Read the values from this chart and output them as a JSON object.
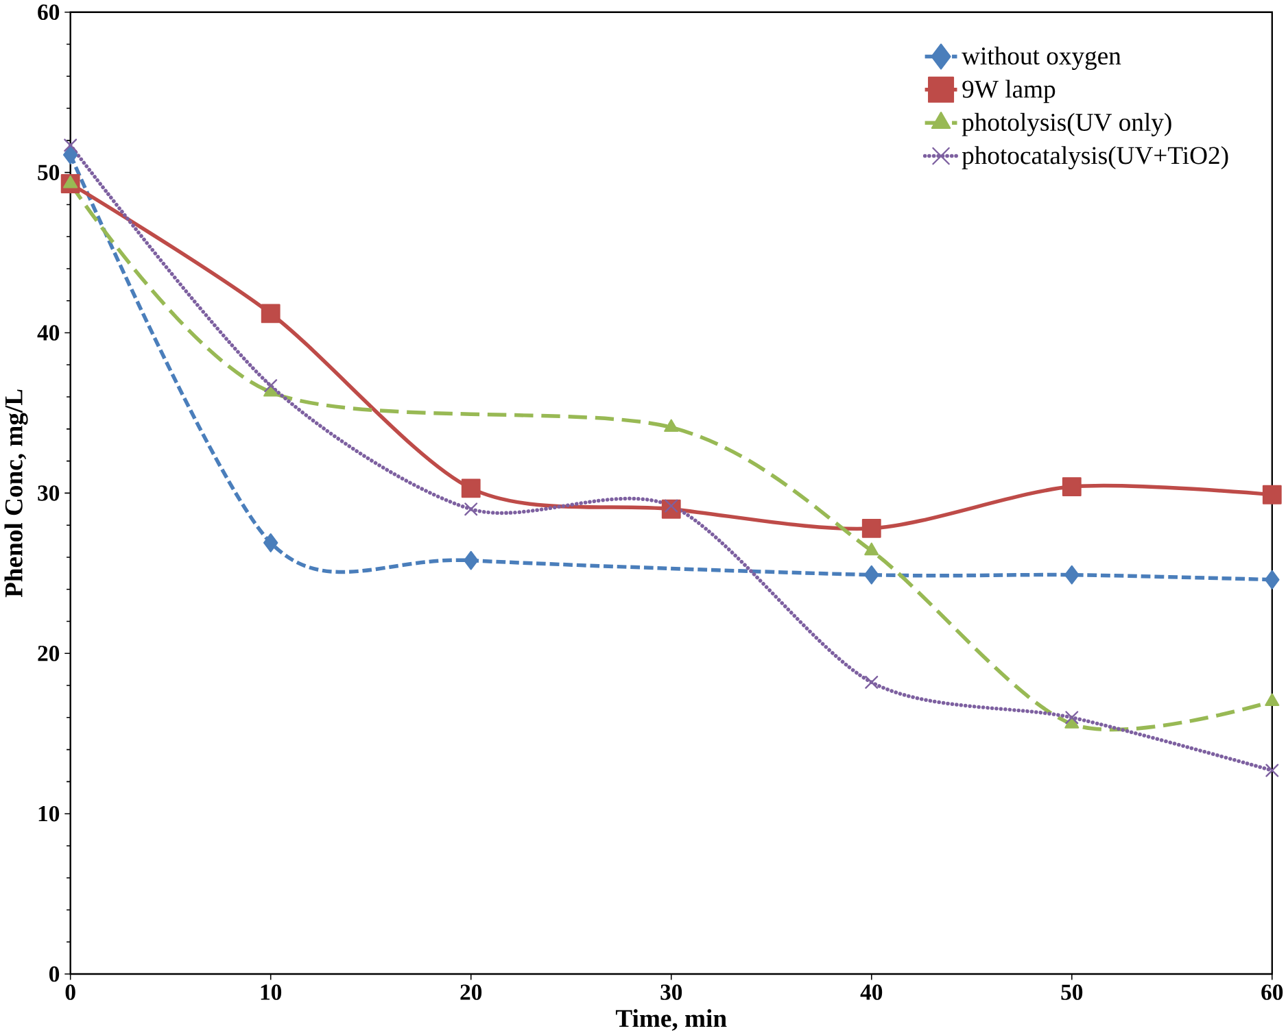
{
  "chart_data": {
    "type": "line",
    "xlabel": "Time, min",
    "ylabel": "Phenol Conc, mg/L",
    "xlim": [
      0,
      60
    ],
    "xticks": [
      0,
      10,
      20,
      30,
      40,
      50,
      60
    ],
    "ylim": [
      0,
      60
    ],
    "yticks": [
      0,
      10,
      20,
      30,
      40,
      50,
      60
    ],
    "legend": "top right",
    "grid": false,
    "series": [
      {
        "name": "without oxygen",
        "color": "#4a7ebb",
        "marker": "diamond",
        "line_style": "dashed",
        "x": [
          0,
          10,
          20,
          40,
          50,
          60
        ],
        "values": [
          51.1,
          26.9,
          25.8,
          24.9,
          24.9,
          24.6
        ]
      },
      {
        "name": "9W lamp",
        "color": "#be4b48",
        "marker": "square",
        "line_style": "solid",
        "x": [
          0,
          10,
          20,
          30,
          40,
          50,
          60
        ],
        "values": [
          49.3,
          41.2,
          30.3,
          29.0,
          27.8,
          30.4,
          29.9
        ]
      },
      {
        "name": "photolysis(UV only)",
        "color": "#98b954",
        "marker": "triangle",
        "line_style": "longdashed",
        "x": [
          0,
          10,
          30,
          40,
          50,
          60
        ],
        "values": [
          49.3,
          36.3,
          34.1,
          26.4,
          15.6,
          17.0
        ]
      },
      {
        "name": "photocatalysis(UV+TiO2)",
        "color": "#7d60a0",
        "marker": "cross",
        "line_style": "dotted",
        "x": [
          0,
          10,
          20,
          30,
          40,
          50,
          60
        ],
        "values": [
          51.7,
          36.7,
          29.0,
          29.2,
          18.2,
          16.0,
          12.7
        ]
      }
    ]
  }
}
